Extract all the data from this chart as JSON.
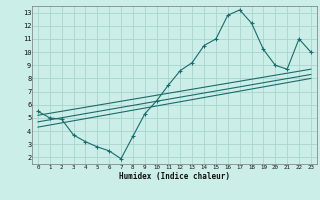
{
  "xlabel": "Humidex (Indice chaleur)",
  "background_color": "#cceee8",
  "grid_color": "#aad4ce",
  "line_color": "#1a6b6b",
  "xlim": [
    -0.5,
    23.5
  ],
  "ylim": [
    1.5,
    13.5
  ],
  "xticks": [
    0,
    1,
    2,
    3,
    4,
    5,
    6,
    7,
    8,
    9,
    10,
    11,
    12,
    13,
    14,
    15,
    16,
    17,
    18,
    19,
    20,
    21,
    22,
    23
  ],
  "yticks": [
    2,
    3,
    4,
    5,
    6,
    7,
    8,
    9,
    10,
    11,
    12,
    13
  ],
  "line1_x": [
    0,
    1,
    2,
    3,
    4,
    5,
    6,
    7,
    8,
    9,
    10,
    11,
    12,
    13,
    14,
    15,
    16,
    17,
    18,
    19,
    20,
    21,
    22,
    23
  ],
  "line1_y": [
    5.5,
    5.0,
    4.9,
    3.7,
    3.2,
    2.8,
    2.5,
    1.9,
    3.6,
    5.3,
    6.3,
    7.5,
    8.6,
    9.2,
    10.5,
    11.0,
    12.8,
    13.2,
    12.2,
    10.2,
    9.0,
    8.7,
    11.0,
    10.0
  ],
  "line2_x": [
    0,
    23
  ],
  "line2_y": [
    4.3,
    8.0
  ],
  "line3_x": [
    0,
    23
  ],
  "line3_y": [
    4.7,
    8.3
  ],
  "line4_x": [
    0,
    23
  ],
  "line4_y": [
    5.2,
    8.7
  ]
}
